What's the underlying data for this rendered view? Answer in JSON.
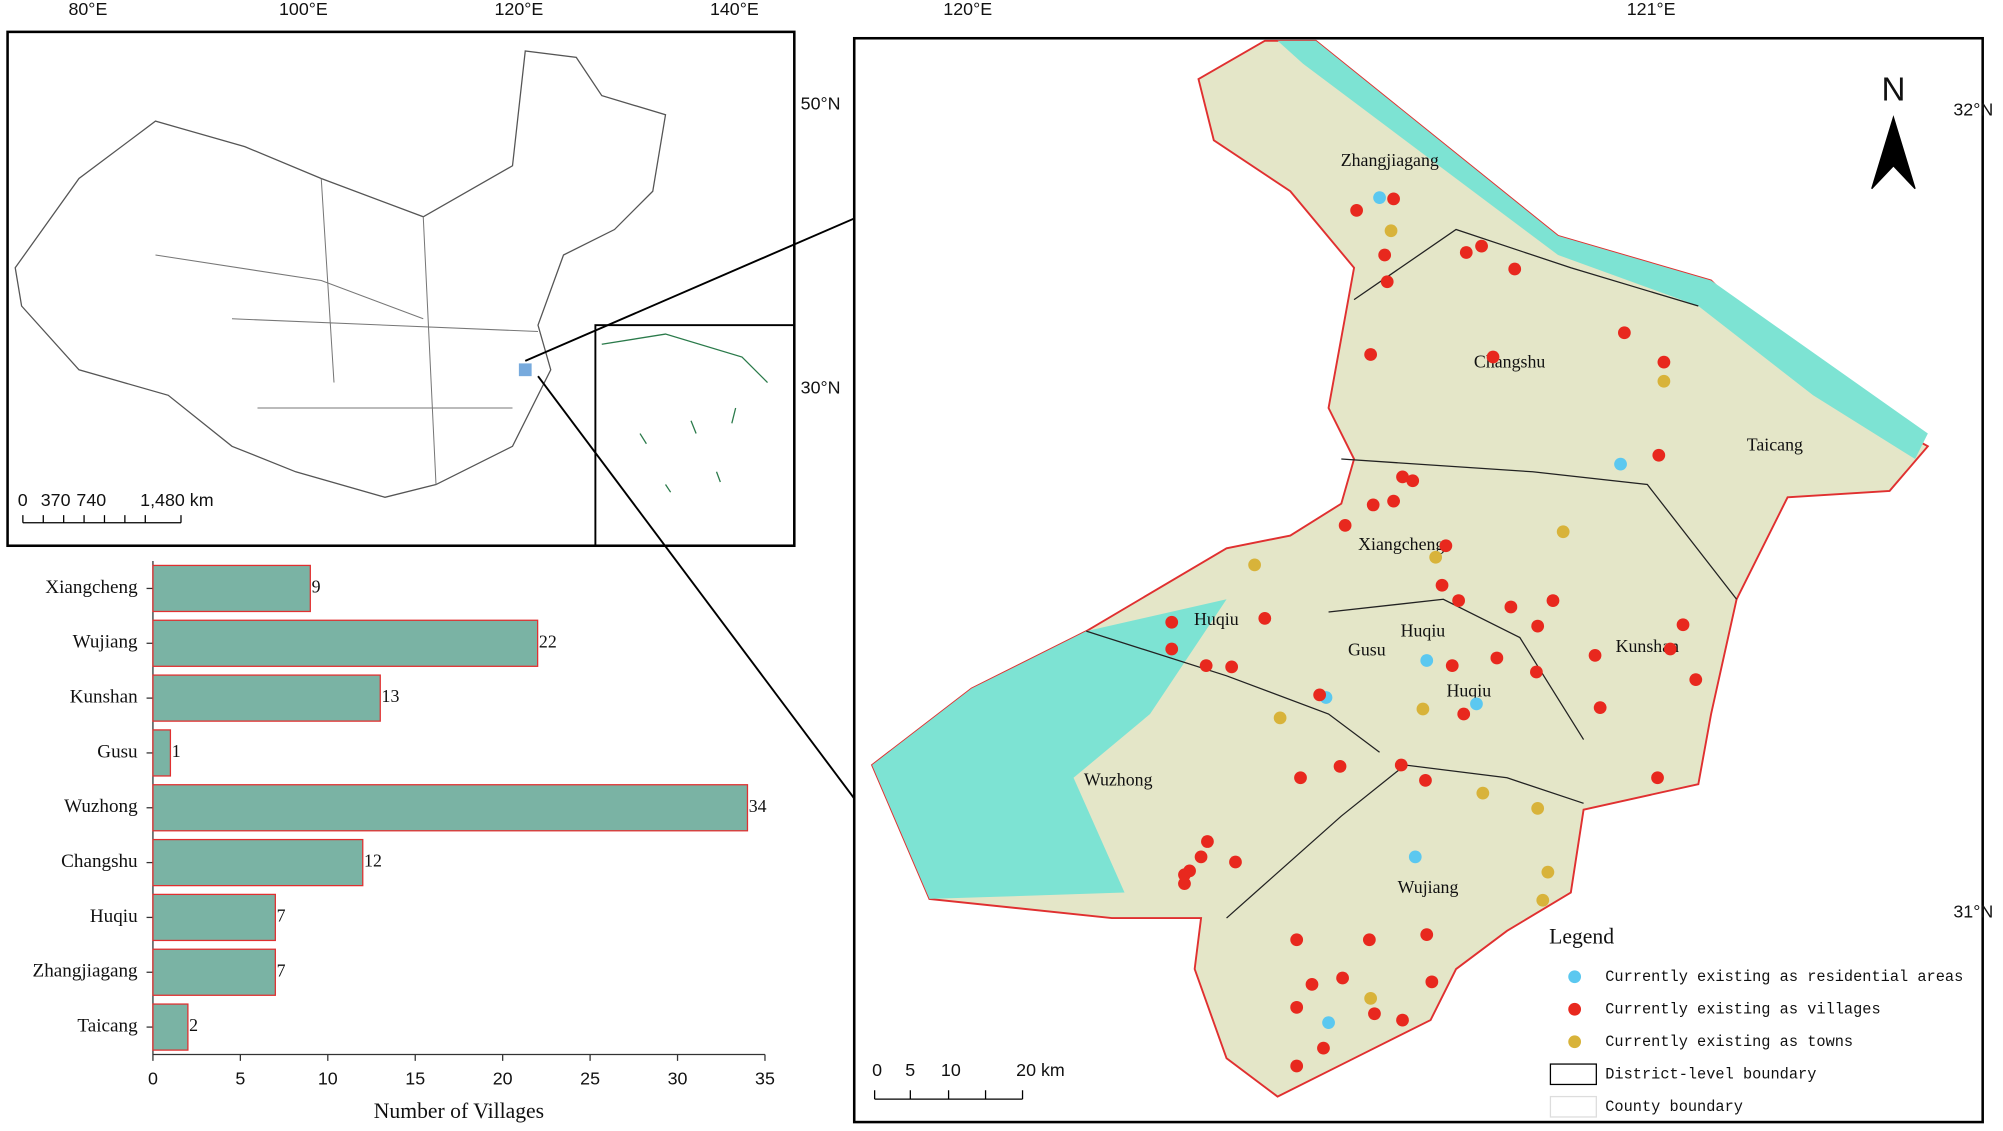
{
  "chart_data": {
    "type": "bar",
    "orientation": "horizontal",
    "categories": [
      "Xiangcheng",
      "Wujiang",
      "Kunshan",
      "Gusu",
      "Wuzhong",
      "Changshu",
      "Huqiu",
      "Zhangjiagang",
      "Taicang"
    ],
    "values": [
      9,
      22,
      13,
      1,
      34,
      12,
      7,
      7,
      2
    ],
    "color": "#7ab3a4",
    "edge_color": "#e03030",
    "x_label": "Number of Villages",
    "xlim": [
      0,
      35
    ],
    "xticks": [
      0,
      5,
      10,
      15,
      20,
      25,
      30,
      35
    ]
  },
  "inset_map": {
    "lon_labels": [
      "80°E",
      "100°E",
      "120°E",
      "140°E"
    ],
    "lat_labels": [
      "50°N",
      "30°N"
    ],
    "scale_labels": [
      "0",
      "370",
      "740",
      "1,480 km"
    ]
  },
  "main_map": {
    "lon_labels": [
      "120°E",
      "121°E"
    ],
    "lat_labels": [
      "32°N",
      "31°N"
    ],
    "north": "N",
    "places": [
      "Zhangjiagang",
      "Changshu",
      "Taicang",
      "Xiangcheng",
      "Huqiu",
      "Huqiu",
      "Gusu",
      "Kunshan",
      "Huqiu",
      "Wuzhong",
      "Wujiang"
    ],
    "legend": {
      "title": "Legend",
      "items": [
        {
          "label": "Currently existing as residential areas",
          "color": "#5bc8f0"
        },
        {
          "label": "Currently existing as villages",
          "color": "#e8281e"
        },
        {
          "label": "Currently existing as towns",
          "color": "#d8b33a"
        },
        {
          "label": "District-level boundary",
          "color": "#000000"
        },
        {
          "label": "County boundary",
          "color": "#dddddd"
        }
      ]
    },
    "scale_labels": [
      "0",
      "5",
      "10",
      "20 km"
    ]
  }
}
